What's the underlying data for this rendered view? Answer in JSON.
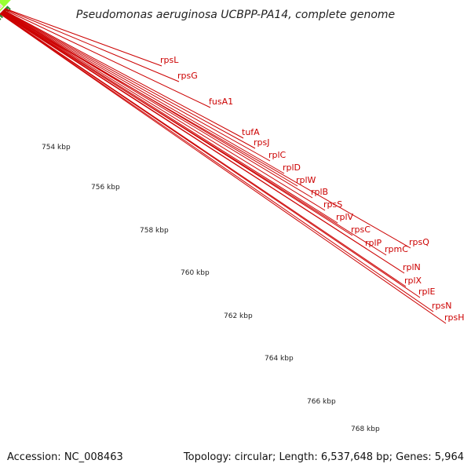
{
  "header": {
    "title": "Pseudomonas aeruginosa UCBPP-PA14, complete genome"
  },
  "footer": {
    "accession": "Accession: NC_008463",
    "summary": "Topology: circular; Length: 6,537,648 bp; Genes: 5,964"
  },
  "colors": {
    "background": "#ffffff",
    "backbone": "#8a8a8a",
    "cds_forward": "#ff0000",
    "cds_reverse": "#ff0000",
    "operon_band": "#f0a0a0",
    "prev_feature": "#ff8c00",
    "next_feature": "#99ff33",
    "label_text": "#cc0000",
    "leader_line": "#cc0000",
    "major_tick": "#2e8b2e",
    "minor_tick": "#2e8b2e"
  },
  "scale": {
    "labels": [
      "754 kbp",
      "756 kbp",
      "758 kbp",
      "760 kbp",
      "762 kbp",
      "764 kbp",
      "766 kbp",
      "768 kbp"
    ]
  },
  "genes": [
    {
      "name": "rpsL"
    },
    {
      "name": "rpsG"
    },
    {
      "name": "fusA1"
    },
    {
      "name": "tufA"
    },
    {
      "name": "rpsJ"
    },
    {
      "name": "rplC"
    },
    {
      "name": "rplD"
    },
    {
      "name": "rplW"
    },
    {
      "name": "rplB"
    },
    {
      "name": "rpsS"
    },
    {
      "name": "rplV"
    },
    {
      "name": "rpsC"
    },
    {
      "name": "rplP"
    },
    {
      "name": "rpmC"
    },
    {
      "name": "rpsQ"
    },
    {
      "name": "rplN"
    },
    {
      "name": "rplX"
    },
    {
      "name": "rplE"
    },
    {
      "name": "rpsN"
    },
    {
      "name": "rpsH"
    }
  ]
}
